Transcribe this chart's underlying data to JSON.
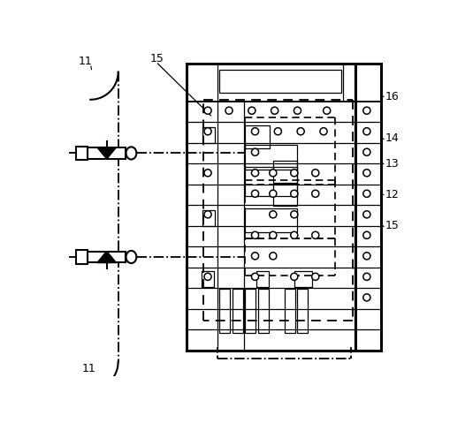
{
  "bg_color": "#ffffff",
  "line_color": "#000000",
  "mx": 0.365,
  "my": 0.04,
  "mw": 0.595,
  "mh": 0.88,
  "lw_thick": 2.2,
  "lw_med": 1.4,
  "lw_thin": 0.9
}
